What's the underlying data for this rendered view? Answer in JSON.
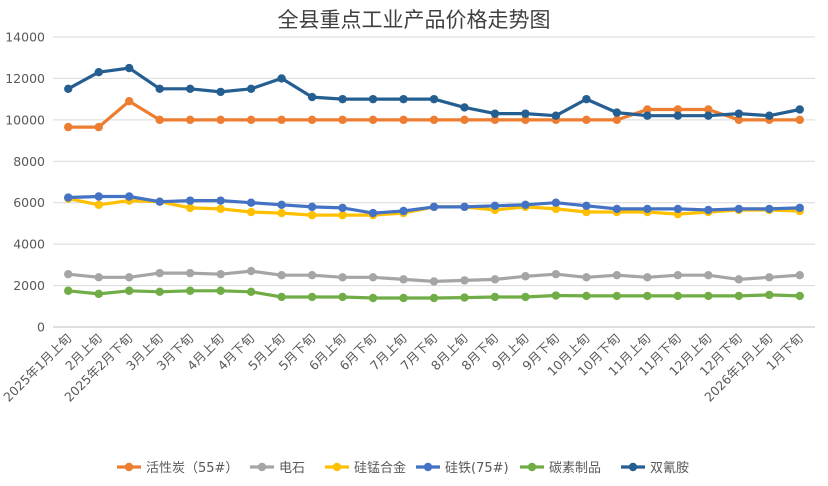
{
  "chart_data": {
    "type": "line",
    "title": "全县重点工业产品价格走势图",
    "xlabel": "",
    "ylabel": "",
    "ylim": [
      0,
      14000
    ],
    "yticks": [
      0,
      2000,
      4000,
      6000,
      8000,
      10000,
      12000,
      14000
    ],
    "grid": true,
    "legend_position": "bottom",
    "categories": [
      "2025年1月上旬",
      "2月上旬",
      "2025年2月下旬",
      "3月上旬",
      "3月下旬",
      "4月上旬",
      "4月下旬",
      "5月上旬",
      "5月下旬",
      "6月上旬",
      "6月下旬",
      "7月上旬",
      "7月下旬",
      "8月上旬",
      "8月下旬",
      "9月上旬",
      "9月下旬",
      "10月上旬",
      "10月下旬",
      "11月上旬",
      "11月下旬",
      "12月上旬",
      "12月下旬",
      "2026年1月上旬",
      "1月下旬"
    ],
    "series": [
      {
        "name": "活性炭（55#）",
        "color": "#ED7D31",
        "values": [
          9650,
          9650,
          10900,
          10000,
          10000,
          10000,
          10000,
          10000,
          10000,
          10000,
          10000,
          10000,
          10000,
          10000,
          10000,
          10000,
          10000,
          10000,
          10000,
          10500,
          10500,
          10500,
          10000,
          10000,
          10000
        ]
      },
      {
        "name": "电石",
        "color": "#A5A5A5",
        "values": [
          2550,
          2400,
          2400,
          2600,
          2600,
          2550,
          2700,
          2500,
          2500,
          2400,
          2400,
          2300,
          2200,
          2250,
          2300,
          2450,
          2550,
          2400,
          2500,
          2400,
          2500,
          2500,
          2300,
          2400,
          2500
        ]
      },
      {
        "name": "硅锰合金",
        "color": "#FFC000",
        "values": [
          6200,
          5900,
          6100,
          6050,
          5750,
          5700,
          5550,
          5500,
          5400,
          5400,
          5400,
          5500,
          5800,
          5800,
          5650,
          5800,
          5700,
          5550,
          5550,
          5550,
          5450,
          5550,
          5650,
          5650,
          5600
        ]
      },
      {
        "name": "硅铁(75#)",
        "color": "#4472C4",
        "values": [
          6250,
          6300,
          6300,
          6050,
          6100,
          6100,
          6000,
          5900,
          5800,
          5750,
          5500,
          5600,
          5800,
          5800,
          5850,
          5900,
          6000,
          5850,
          5700,
          5700,
          5700,
          5650,
          5700,
          5700,
          5750
        ]
      },
      {
        "name": "碳素制品",
        "color": "#70AD47",
        "values": [
          1750,
          1600,
          1750,
          1700,
          1750,
          1750,
          1700,
          1450,
          1450,
          1450,
          1400,
          1400,
          1400,
          1420,
          1450,
          1450,
          1520,
          1500,
          1500,
          1500,
          1500,
          1500,
          1500,
          1550,
          1500
        ]
      },
      {
        "name": "双氰胺",
        "color": "#255E91",
        "values": [
          11500,
          12300,
          12500,
          11500,
          11500,
          11350,
          11500,
          12000,
          11100,
          11000,
          11000,
          11000,
          11000,
          10600,
          10300,
          10300,
          10200,
          11000,
          10350,
          10200,
          10200,
          10200,
          10300,
          10200,
          10500
        ]
      }
    ]
  }
}
